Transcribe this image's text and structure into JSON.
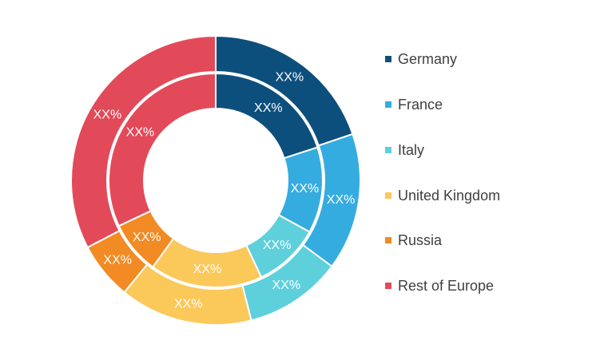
{
  "chart_data": {
    "type": "pie",
    "categories": [
      "Germany",
      "France",
      "Italy",
      "United Kingdom",
      "Russia",
      "Rest of Europe"
    ],
    "colors": [
      "#0d4f7c",
      "#35ace0",
      "#5ed0dc",
      "#fbc85a",
      "#f28b23",
      "#e24a59"
    ],
    "series": [
      {
        "values": [
          0.2,
          0.155,
          0.11,
          0.15,
          0.065,
          0.33
        ],
        "labels": [
          "XX%",
          "XX%",
          "XX%",
          "XX%",
          "XX%",
          "XX%"
        ]
      },
      {
        "values": [
          0.2,
          0.13,
          0.1,
          0.17,
          0.08,
          0.32
        ],
        "labels": [
          "XX%",
          "XX%",
          "XX%",
          "XX%",
          "XX%",
          "XX%"
        ]
      }
    ],
    "legend_position": "right"
  }
}
